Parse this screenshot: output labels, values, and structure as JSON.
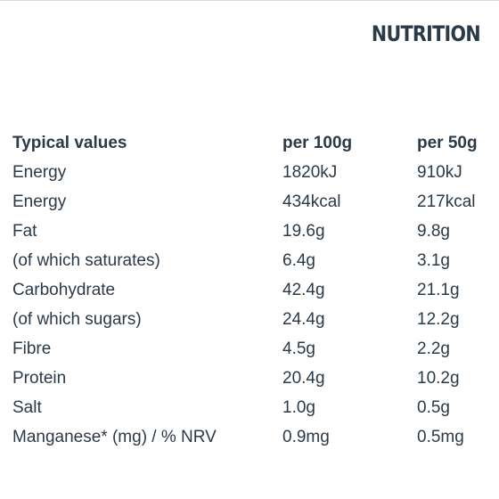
{
  "heading": "NUTRITION",
  "table": {
    "headers": [
      "Typical values",
      "per 100g",
      "per 50g"
    ],
    "rows": [
      [
        "Energy",
        "1820kJ",
        "910kJ"
      ],
      [
        "Energy",
        "434kcal",
        "217kcal"
      ],
      [
        "Fat",
        "19.6g",
        "9.8g"
      ],
      [
        "(of which saturates)",
        "6.4g",
        "3.1g"
      ],
      [
        "Carbohydrate",
        "42.4g",
        "21.1g"
      ],
      [
        "(of which sugars)",
        "24.4g",
        "12.2g"
      ],
      [
        "Fibre",
        "4.5g",
        "2.2g"
      ],
      [
        "Protein",
        "20.4g",
        "10.2g"
      ],
      [
        "Salt",
        "1.0g",
        "0.5g"
      ],
      [
        "Manganese* (mg) / % NRV",
        "0.9mg",
        "0.5mg"
      ]
    ]
  }
}
